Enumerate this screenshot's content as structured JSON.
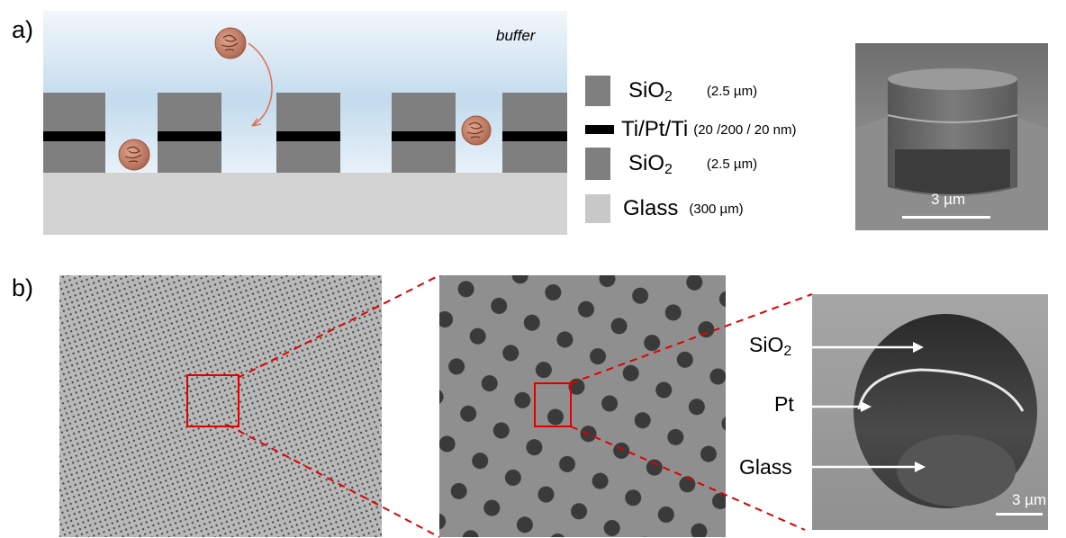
{
  "panel_a": {
    "label": "a)",
    "buffer_label": "buffer",
    "legend": [
      {
        "name": "SiO",
        "sub": "2",
        "thickness": "(2.5 µm)",
        "color": "#7f7f7f"
      },
      {
        "name": "Ti/Pt/Ti",
        "sub": "",
        "thickness": "(20 /200 / 20 nm)",
        "color": "#000000"
      },
      {
        "name": "SiO",
        "sub": "2",
        "thickness": "(2.5 µm)",
        "color": "#7f7f7f"
      },
      {
        "name": "Glass",
        "sub": "",
        "thickness": "(300 µm)",
        "color": "#c8c8c8"
      }
    ],
    "sem_scale": "3 µm"
  },
  "panel_b": {
    "label": "b)",
    "layers": [
      {
        "name": "SiO",
        "sub": "2"
      },
      {
        "name": "Pt",
        "sub": ""
      },
      {
        "name": "Glass",
        "sub": ""
      }
    ],
    "sem_scale": "3 µm"
  },
  "colors": {
    "oxide": "#7f7f7f",
    "electrode": "#000000",
    "glass": "#d4d4d4",
    "zoom_box": "#e00000",
    "cell": "#c9826b"
  }
}
